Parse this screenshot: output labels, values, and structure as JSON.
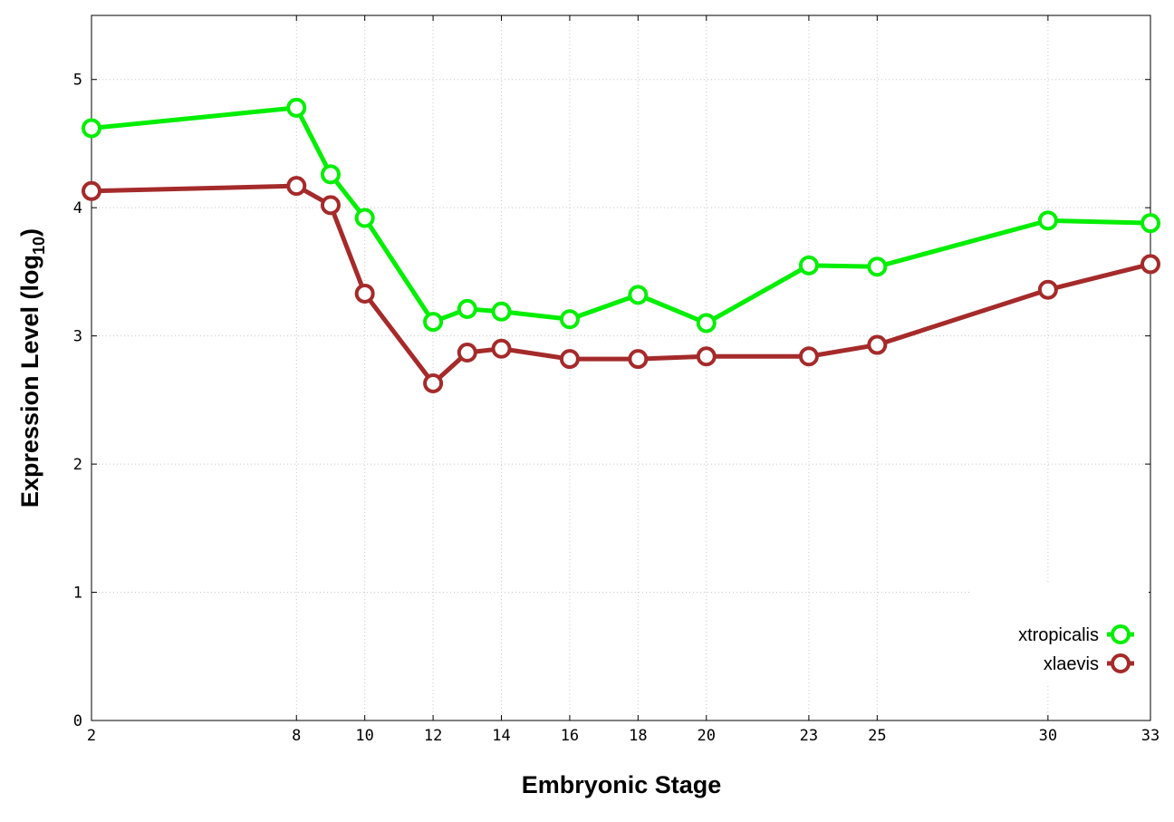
{
  "chart_data": {
    "type": "line",
    "title": "",
    "xlabel": "Embryonic Stage",
    "ylabel_main": "Expression Level (log",
    "ylabel_sub": "10",
    "ylabel_close": ")",
    "x": [
      2,
      8,
      9,
      10,
      12,
      13,
      14,
      16,
      18,
      20,
      23,
      25,
      30,
      33
    ],
    "x_tick_labels": [
      "2",
      "8",
      "10",
      "12",
      "14",
      "16",
      "18",
      "20",
      "23",
      "25",
      "30",
      "33"
    ],
    "x_tick_values": [
      2,
      8,
      10,
      12,
      14,
      16,
      18,
      20,
      23,
      25,
      30,
      33
    ],
    "y_tick_values": [
      0,
      1,
      2,
      3,
      4,
      5
    ],
    "y_tick_labels": [
      "0",
      "1",
      "2",
      "3",
      "4",
      "5"
    ],
    "xlim": [
      2,
      33
    ],
    "ylim": [
      0,
      5.5
    ],
    "grid": true,
    "legend_position": "bottom-right",
    "series": [
      {
        "name": "xtropicalis",
        "color": "#00ee00",
        "values": [
          4.62,
          4.78,
          4.26,
          3.92,
          3.11,
          3.21,
          3.19,
          3.13,
          3.32,
          3.1,
          3.55,
          3.54,
          3.9,
          3.88
        ]
      },
      {
        "name": "xlaevis",
        "color": "#a52a2a",
        "values": [
          4.13,
          4.17,
          4.02,
          3.33,
          2.63,
          2.87,
          2.9,
          2.82,
          2.82,
          2.84,
          2.84,
          2.93,
          3.36,
          3.56
        ]
      }
    ]
  }
}
